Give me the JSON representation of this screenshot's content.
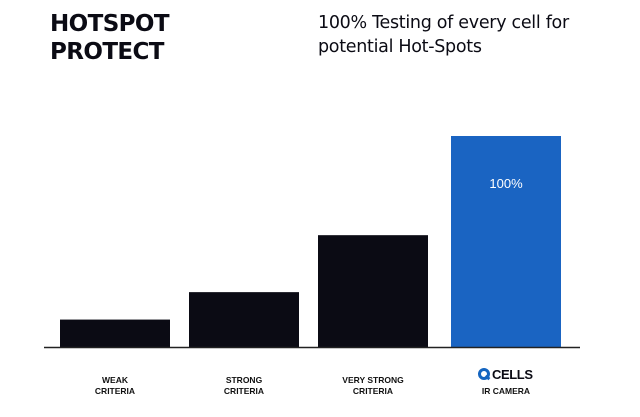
{
  "header": {
    "title_lines": [
      "HOTSPOT",
      "PROTECT"
    ],
    "subtitle_lines": [
      "100% Testing of every cell for",
      "potential Hot-Spots"
    ]
  },
  "chart_data": {
    "type": "bar",
    "categories": [
      [
        "WEAK",
        "CRITERIA"
      ],
      [
        "STRONG",
        "CRITERIA"
      ],
      [
        "VERY STRONG",
        "CRITERIA"
      ],
      [
        "",
        "IR CAMERA"
      ]
    ],
    "values": [
      13,
      26,
      53,
      100
    ],
    "data_labels": [
      "",
      "",
      "",
      "100%"
    ],
    "ylim": [
      0,
      100
    ],
    "grid": false,
    "legend": "none",
    "colors": [
      "#0b0b14",
      "#0b0b14",
      "#0b0b14",
      "#1a64c2"
    ],
    "axis_color": "#222222"
  },
  "logo": {
    "text": "CELLS",
    "icon": "q-logo-icon",
    "color": "#1565c0"
  }
}
